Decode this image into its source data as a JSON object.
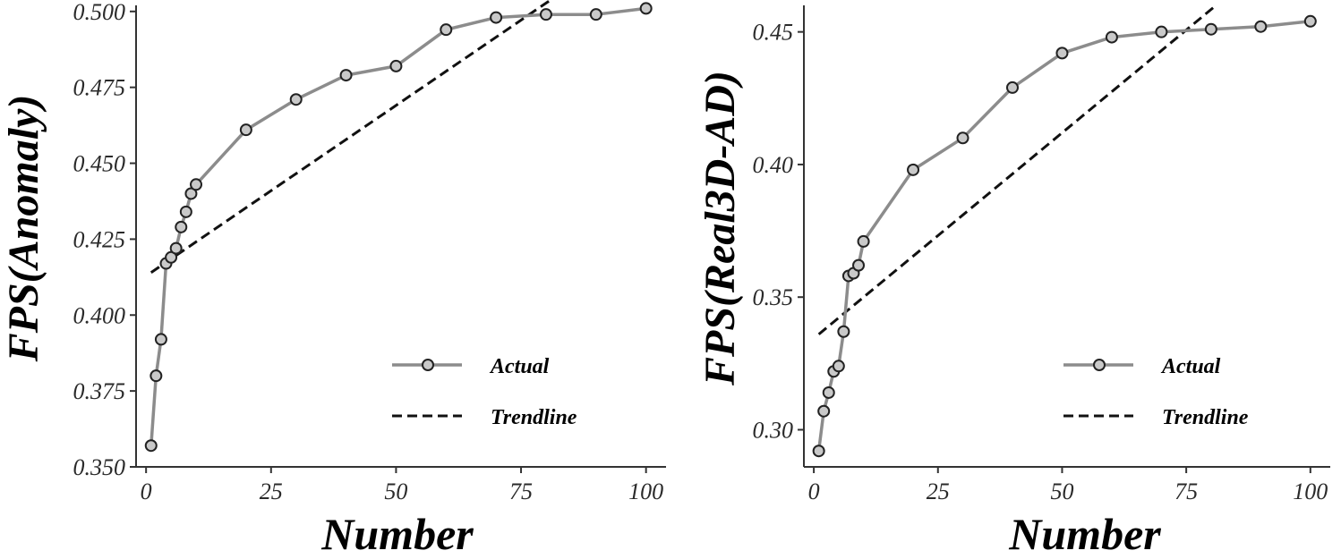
{
  "chart_data": [
    {
      "type": "line",
      "xlabel": "Number",
      "ylabel": "FPS(Anomaly)",
      "xlim": [
        -2,
        104
      ],
      "ylim": [
        0.35,
        0.502
      ],
      "xticks": [
        0,
        25,
        50,
        75,
        100
      ],
      "xtick_labels": [
        "0",
        "25",
        "50",
        "75",
        "100"
      ],
      "yticks": [
        0.35,
        0.375,
        0.4,
        0.425,
        0.45,
        0.475,
        0.5
      ],
      "ytick_labels": [
        "0.350",
        "0.375",
        "0.400",
        "0.425",
        "0.450",
        "0.475",
        "0.500"
      ],
      "legend_position": "bottom-right",
      "series": [
        {
          "name": "Actual",
          "style": "solid-with-markers",
          "color": "#8c8c8c",
          "x": [
            1,
            2,
            3,
            4,
            5,
            6,
            7,
            8,
            9,
            10,
            20,
            30,
            40,
            50,
            60,
            70,
            80,
            90,
            100
          ],
          "y": [
            0.357,
            0.38,
            0.392,
            0.417,
            0.419,
            0.422,
            0.429,
            0.434,
            0.44,
            0.443,
            0.461,
            0.471,
            0.479,
            0.482,
            0.494,
            0.498,
            0.499,
            0.499,
            0.501
          ]
        },
        {
          "name": "Trendline",
          "style": "dashed",
          "color": "#111111",
          "x": [
            1,
            82
          ],
          "y": [
            0.414,
            0.505
          ]
        }
      ]
    },
    {
      "type": "line",
      "xlabel": "Number",
      "ylabel": "FPS(Real3D-AD)",
      "xlim": [
        -2,
        104
      ],
      "ylim": [
        0.286,
        0.46
      ],
      "xticks": [
        0,
        25,
        50,
        75,
        100
      ],
      "xtick_labels": [
        "0",
        "25",
        "50",
        "75",
        "100"
      ],
      "yticks": [
        0.3,
        0.35,
        0.4,
        0.45
      ],
      "ytick_labels": [
        "0.30",
        "0.35",
        "0.40",
        "0.45"
      ],
      "legend_position": "bottom-right",
      "series": [
        {
          "name": "Actual",
          "style": "solid-with-markers",
          "color": "#8c8c8c",
          "x": [
            1,
            2,
            3,
            4,
            5,
            6,
            7,
            8,
            9,
            10,
            20,
            30,
            40,
            50,
            60,
            70,
            80,
            90,
            100
          ],
          "y": [
            0.292,
            0.307,
            0.314,
            0.322,
            0.324,
            0.337,
            0.358,
            0.359,
            0.362,
            0.371,
            0.398,
            0.41,
            0.429,
            0.442,
            0.448,
            0.45,
            0.451,
            0.452,
            0.454
          ]
        },
        {
          "name": "Trendline",
          "style": "dashed",
          "color": "#111111",
          "x": [
            1,
            81
          ],
          "y": [
            0.336,
            0.46
          ]
        }
      ]
    }
  ]
}
